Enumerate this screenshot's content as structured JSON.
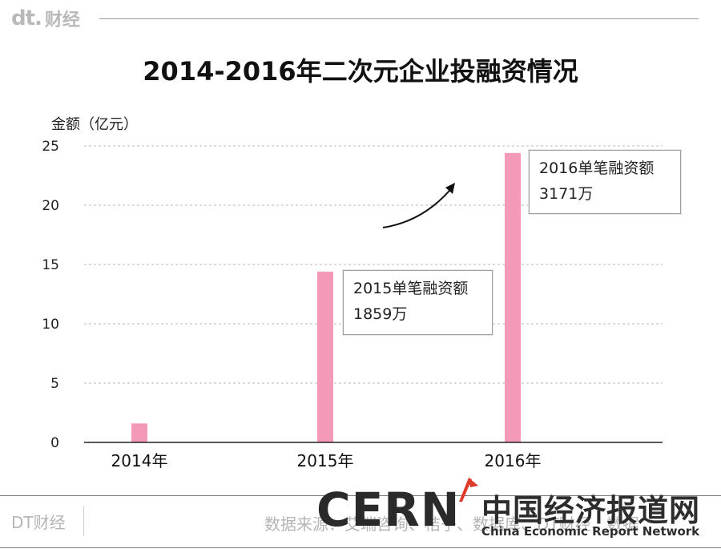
{
  "header": {
    "brand_mark": "dt.",
    "brand_text": "财经",
    "title": "2014-2016年二次元企业投融资情况"
  },
  "chart_data": {
    "type": "bar",
    "title": "2014-2016年二次元企业投融资情况",
    "ylabel": "金额（亿元）",
    "xlabel": "",
    "categories": [
      "2014年",
      "2015年",
      "2016年"
    ],
    "values": [
      1.6,
      14.4,
      24.4
    ],
    "ylim": [
      0,
      25
    ],
    "yticks": [
      0,
      5,
      10,
      15,
      20,
      25
    ],
    "ytick_labels": [
      "0",
      "5",
      "10",
      "15",
      "20",
      "25"
    ],
    "grid": true,
    "bar_color": "#f49ab8",
    "annotations": [
      {
        "category": "2015年",
        "line1": "2015单笔融资额",
        "line2": "1859万"
      },
      {
        "category": "2016年",
        "line1": "2016单笔融资额",
        "line2": "3171万"
      }
    ]
  },
  "footer": {
    "brand": "DT财经",
    "source": "数据来源：艾瑞咨询、桔子、数据库、DT财经、数据"
  },
  "watermark": {
    "logo": "CERN",
    "name_cn": "中国经济报道网",
    "name_en": "China Economic Report Network"
  }
}
